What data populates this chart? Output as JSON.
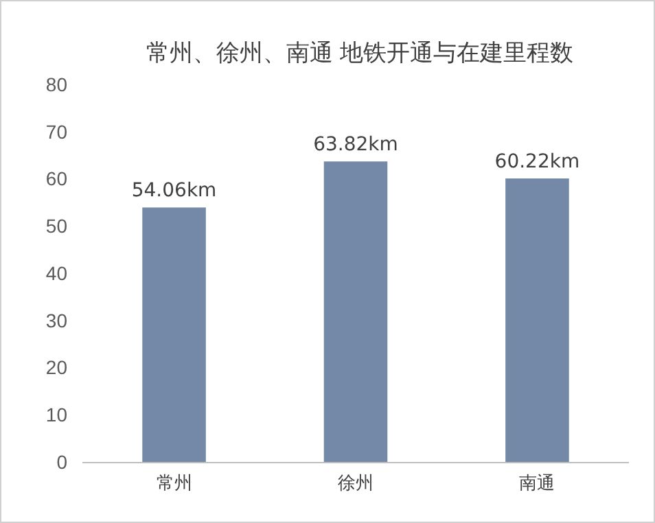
{
  "chart_data": {
    "type": "bar",
    "title": "常州、徐州、南通 地铁开通与在建里程数",
    "categories": [
      "常州",
      "徐州",
      "南通"
    ],
    "values": [
      54.06,
      63.82,
      60.22
    ],
    "value_labels": [
      "54.06km",
      "63.82km",
      "60.22km"
    ],
    "color": "#7488a8",
    "ylim": [
      0,
      80
    ],
    "yticks": [
      0,
      10,
      20,
      30,
      40,
      50,
      60,
      70,
      80
    ],
    "grid": false
  }
}
